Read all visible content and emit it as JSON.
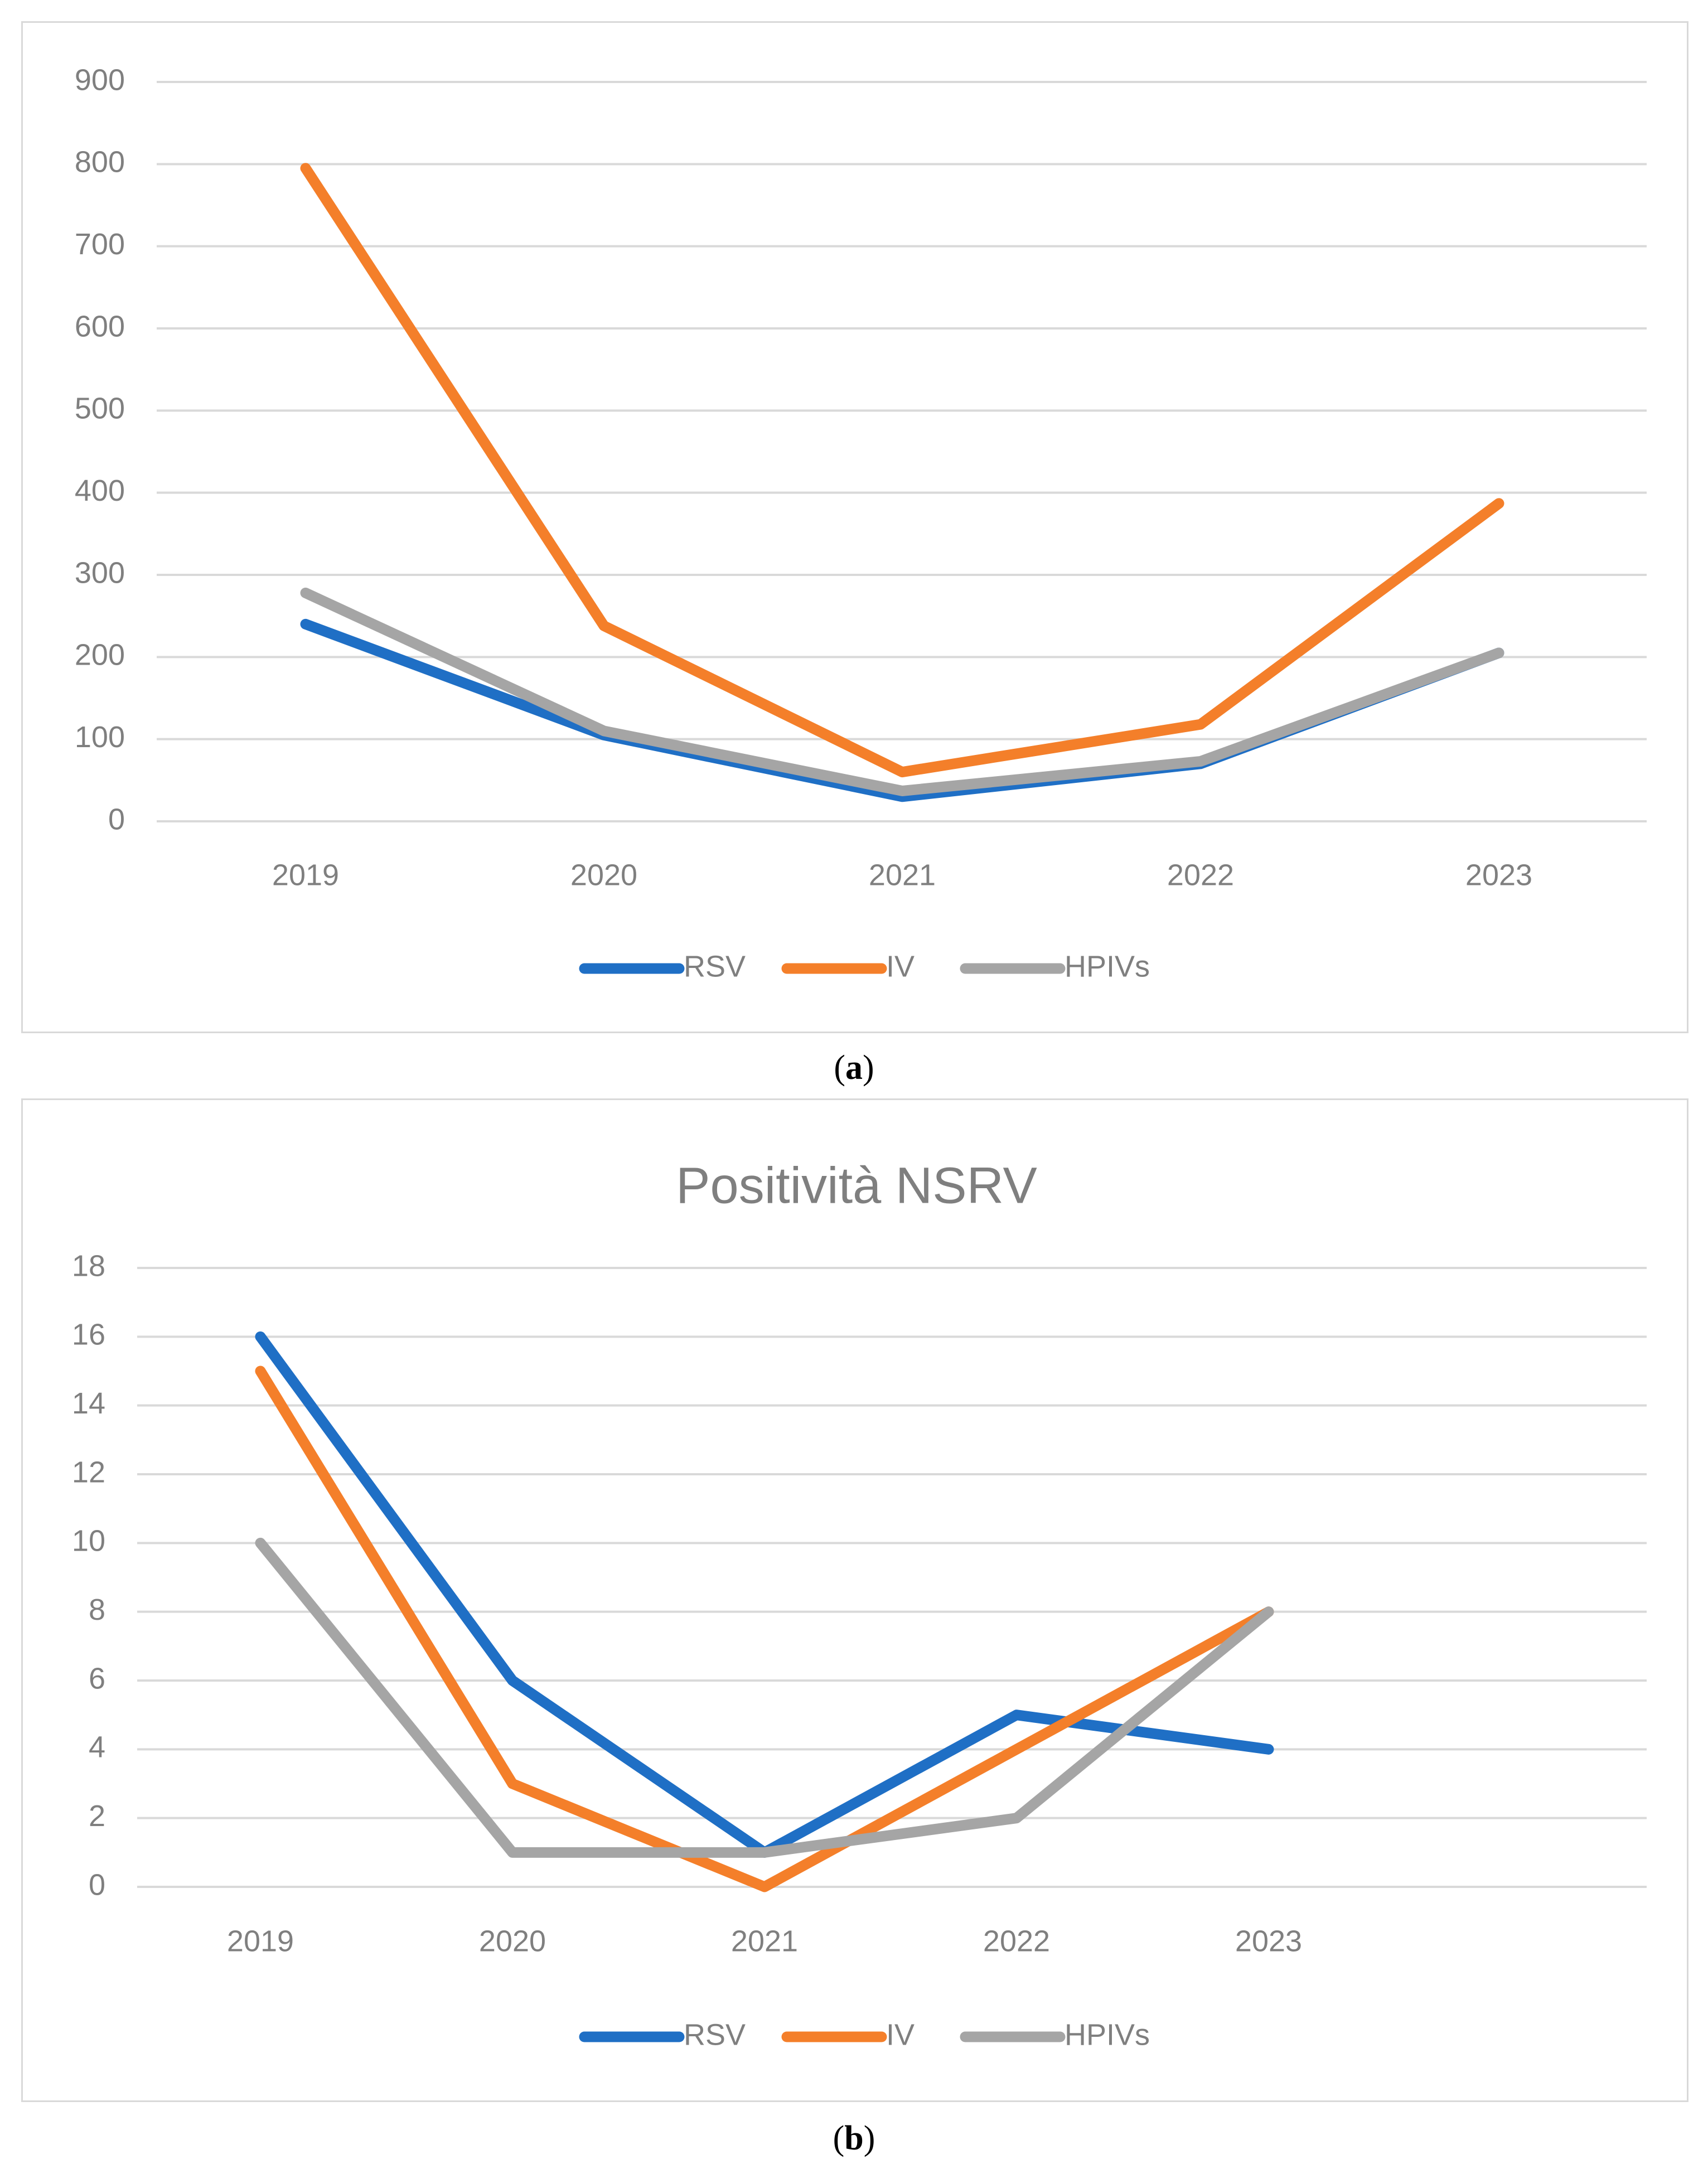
{
  "chart_data": [
    {
      "panel": "a",
      "type": "line",
      "title": "",
      "caption": "a",
      "categories": [
        "2019",
        "2020",
        "2021",
        "2022",
        "2023"
      ],
      "ylim": [
        0,
        900
      ],
      "yticks": [
        0,
        100,
        200,
        300,
        400,
        500,
        600,
        700,
        800,
        900
      ],
      "grid": true,
      "legend": "bottom",
      "series": [
        {
          "name": "RSV",
          "color": "#1f6fc5",
          "values": [
            240,
            105,
            30,
            70,
            205
          ]
        },
        {
          "name": "IV",
          "color": "#f47f2a",
          "values": [
            795,
            238,
            60,
            118,
            387
          ]
        },
        {
          "name": "HPIVs",
          "color": "#a5a5a5",
          "values": [
            278,
            110,
            37,
            73,
            205
          ]
        }
      ]
    },
    {
      "panel": "b",
      "type": "line",
      "title": "Positività NSRV",
      "caption": "b",
      "categories": [
        "2019",
        "2020",
        "2021",
        "2022",
        "2023"
      ],
      "ylim": [
        0,
        18
      ],
      "yticks": [
        0,
        2,
        4,
        6,
        8,
        10,
        12,
        14,
        16,
        18
      ],
      "grid": true,
      "legend": "bottom",
      "series": [
        {
          "name": "RSV",
          "color": "#1f6fc5",
          "values": [
            16,
            6,
            1,
            5,
            4
          ]
        },
        {
          "name": "IV",
          "color": "#f47f2a",
          "values": [
            15,
            3,
            0,
            4,
            8
          ]
        },
        {
          "name": "HPIVs",
          "color": "#a5a5a5",
          "values": [
            10,
            1,
            1,
            2,
            8
          ]
        }
      ]
    }
  ]
}
